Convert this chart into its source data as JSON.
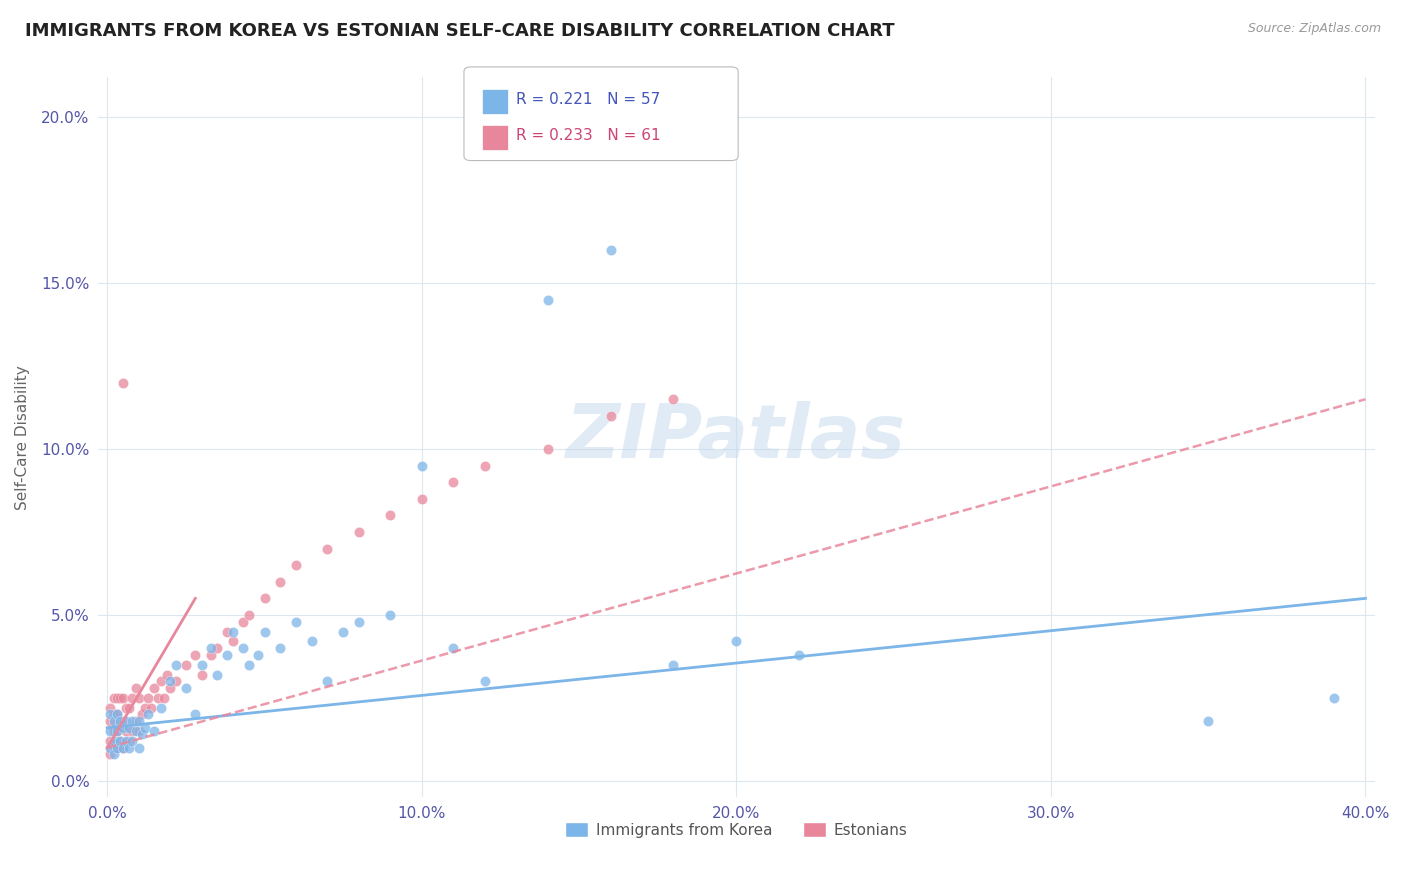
{
  "title": "IMMIGRANTS FROM KOREA VS ESTONIAN SELF-CARE DISABILITY CORRELATION CHART",
  "source": "Source: ZipAtlas.com",
  "ylabel": "Self-Care Disability",
  "xlim": [
    -0.003,
    0.403
  ],
  "ylim": [
    -0.005,
    0.212
  ],
  "xticks": [
    0.0,
    0.1,
    0.2,
    0.3,
    0.4
  ],
  "xtick_labels": [
    "0.0%",
    "10.0%",
    "20.0%",
    "30.0%",
    "40.0%"
  ],
  "yticks": [
    0.0,
    0.05,
    0.1,
    0.15,
    0.2
  ],
  "ytick_labels": [
    "0.0%",
    "5.0%",
    "10.0%",
    "15.0%",
    "20.0%"
  ],
  "korea_color": "#7cb5e8",
  "estonia_color": "#e8879c",
  "korea_R": 0.221,
  "korea_N": 57,
  "estonia_R": 0.233,
  "estonia_N": 61,
  "watermark": "ZIPatlas",
  "background_color": "#ffffff",
  "grid_color": "#dce8f0",
  "title_fontsize": 13,
  "korea_scatter_x": [
    0.001,
    0.001,
    0.001,
    0.002,
    0.002,
    0.002,
    0.003,
    0.003,
    0.003,
    0.004,
    0.004,
    0.005,
    0.005,
    0.006,
    0.006,
    0.007,
    0.007,
    0.008,
    0.008,
    0.009,
    0.01,
    0.01,
    0.011,
    0.012,
    0.013,
    0.015,
    0.017,
    0.02,
    0.022,
    0.025,
    0.028,
    0.03,
    0.033,
    0.035,
    0.038,
    0.04,
    0.043,
    0.045,
    0.048,
    0.05,
    0.055,
    0.06,
    0.065,
    0.07,
    0.075,
    0.08,
    0.09,
    0.1,
    0.11,
    0.12,
    0.14,
    0.16,
    0.18,
    0.2,
    0.22,
    0.35,
    0.39
  ],
  "korea_scatter_y": [
    0.01,
    0.015,
    0.02,
    0.008,
    0.012,
    0.018,
    0.01,
    0.015,
    0.02,
    0.012,
    0.018,
    0.01,
    0.016,
    0.012,
    0.018,
    0.01,
    0.016,
    0.012,
    0.018,
    0.015,
    0.01,
    0.018,
    0.014,
    0.016,
    0.02,
    0.015,
    0.022,
    0.03,
    0.035,
    0.028,
    0.02,
    0.035,
    0.04,
    0.032,
    0.038,
    0.045,
    0.04,
    0.035,
    0.038,
    0.045,
    0.04,
    0.048,
    0.042,
    0.03,
    0.045,
    0.048,
    0.05,
    0.095,
    0.04,
    0.03,
    0.145,
    0.16,
    0.035,
    0.042,
    0.038,
    0.018,
    0.025
  ],
  "estonia_scatter_x": [
    0.001,
    0.001,
    0.001,
    0.001,
    0.002,
    0.002,
    0.002,
    0.002,
    0.003,
    0.003,
    0.003,
    0.003,
    0.004,
    0.004,
    0.004,
    0.005,
    0.005,
    0.005,
    0.006,
    0.006,
    0.007,
    0.007,
    0.008,
    0.008,
    0.009,
    0.009,
    0.01,
    0.01,
    0.011,
    0.012,
    0.013,
    0.014,
    0.015,
    0.016,
    0.017,
    0.018,
    0.019,
    0.02,
    0.022,
    0.025,
    0.028,
    0.03,
    0.033,
    0.035,
    0.038,
    0.04,
    0.043,
    0.045,
    0.05,
    0.055,
    0.06,
    0.07,
    0.08,
    0.09,
    0.1,
    0.11,
    0.12,
    0.14,
    0.16,
    0.18,
    0.005
  ],
  "estonia_scatter_y": [
    0.008,
    0.012,
    0.018,
    0.022,
    0.01,
    0.015,
    0.02,
    0.025,
    0.01,
    0.015,
    0.02,
    0.025,
    0.012,
    0.018,
    0.025,
    0.01,
    0.018,
    0.025,
    0.015,
    0.022,
    0.012,
    0.022,
    0.015,
    0.025,
    0.018,
    0.028,
    0.015,
    0.025,
    0.02,
    0.022,
    0.025,
    0.022,
    0.028,
    0.025,
    0.03,
    0.025,
    0.032,
    0.028,
    0.03,
    0.035,
    0.038,
    0.032,
    0.038,
    0.04,
    0.045,
    0.042,
    0.048,
    0.05,
    0.055,
    0.06,
    0.065,
    0.07,
    0.075,
    0.08,
    0.085,
    0.09,
    0.095,
    0.1,
    0.11,
    0.115,
    0.12
  ],
  "korea_trend_x0": 0.0,
  "korea_trend_x1": 0.4,
  "korea_trend_y0": 0.016,
  "korea_trend_y1": 0.055,
  "estonia_trend_x0": 0.0,
  "estonia_trend_x1": 0.4,
  "estonia_trend_y0": 0.01,
  "estonia_trend_y1": 0.115,
  "estonia_short_trend_x0": 0.0,
  "estonia_short_trend_x1": 0.028,
  "estonia_short_trend_y0": 0.01,
  "estonia_short_trend_y1": 0.055
}
